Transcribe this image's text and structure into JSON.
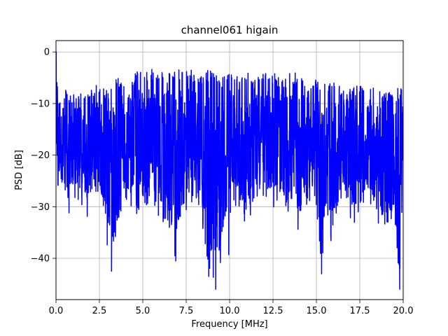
{
  "chart_data": {
    "type": "line",
    "title": "channel061 higain",
    "xlabel": "Frequency [MHz]",
    "ylabel": "PSD [dB]",
    "xlim": [
      0,
      20
    ],
    "ylim": [
      -48,
      2.2
    ],
    "grid": true,
    "line_color": "#0000ff",
    "x_ticks": [
      0,
      2.5,
      5,
      7.5,
      10,
      12.5,
      15,
      17.5,
      20
    ],
    "x_tick_labels": [
      "0.0",
      "2.5",
      "5.0",
      "7.5",
      "10.0",
      "12.5",
      "15.0",
      "17.5",
      "20.0"
    ],
    "y_ticks": [
      0,
      -10,
      -20,
      -30,
      -40
    ],
    "y_tick_labels": [
      "0",
      "−10",
      "−20",
      "−30",
      "−40"
    ],
    "series": [
      {
        "values_description_free": true,
        "x_step": 0.02,
        "envelope_x": [
          0.0,
          0.05,
          0.1,
          0.2,
          0.5,
          1.0,
          1.5,
          2.0,
          2.5,
          3.0,
          3.2,
          3.5,
          4.0,
          4.5,
          5.0,
          5.5,
          6.0,
          6.5,
          6.9,
          7.5,
          8.0,
          8.5,
          8.8,
          9.2,
          9.6,
          10.0,
          10.5,
          11.0,
          11.5,
          12.0,
          12.5,
          13.0,
          13.5,
          14.0,
          14.5,
          15.0,
          15.3,
          15.5,
          16.0,
          16.5,
          17.0,
          17.5,
          18.0,
          18.5,
          19.0,
          19.5,
          19.8,
          20.0
        ],
        "upper": [
          0.0,
          -1.5,
          -4.0,
          -8.0,
          -7.0,
          -8.0,
          -7.0,
          -6.5,
          -6.0,
          -7.0,
          -6.0,
          -5.0,
          -5.0,
          -4.0,
          -3.5,
          -3.0,
          -4.0,
          -3.5,
          -3.5,
          -3.0,
          -3.5,
          -4.0,
          -3.5,
          -4.0,
          -4.5,
          -4.0,
          -3.5,
          -4.0,
          -5.0,
          -4.0,
          -4.0,
          -5.0,
          -4.0,
          -4.0,
          -6.0,
          -5.0,
          -5.0,
          -6.0,
          -6.0,
          -7.0,
          -7.0,
          -6.0,
          -7.0,
          -7.0,
          -7.5,
          -8.0,
          -6.5,
          -7.5
        ],
        "lower": [
          -15.0,
          -20.0,
          -27.0,
          -26.0,
          -31.0,
          -28.0,
          -33.0,
          -32.0,
          -30.0,
          -37.0,
          -42.5,
          -37.0,
          -29.0,
          -32.0,
          -31.0,
          -30.0,
          -33.0,
          -35.0,
          -40.5,
          -32.0,
          -28.0,
          -36.0,
          -43.5,
          -46.0,
          -39.0,
          -32.0,
          -30.0,
          -34.0,
          -29.0,
          -32.0,
          -30.0,
          -31.0,
          -33.0,
          -36.0,
          -29.0,
          -31.0,
          -43.0,
          -34.0,
          -38.0,
          -29.0,
          -34.0,
          -33.0,
          -29.0,
          -33.0,
          -38.0,
          -33.0,
          -46.0,
          -30.0
        ],
        "spike_minima": [
          [
            3.2,
            -42.5
          ],
          [
            6.9,
            -40.5
          ],
          [
            8.8,
            -43.5
          ],
          [
            9.2,
            -46.0
          ],
          [
            9.95,
            -39.3
          ],
          [
            15.3,
            -43.0
          ],
          [
            19.8,
            -46.0
          ],
          [
            0.75,
            -31.2
          ],
          [
            2.95,
            -37.4
          ]
        ]
      }
    ]
  }
}
